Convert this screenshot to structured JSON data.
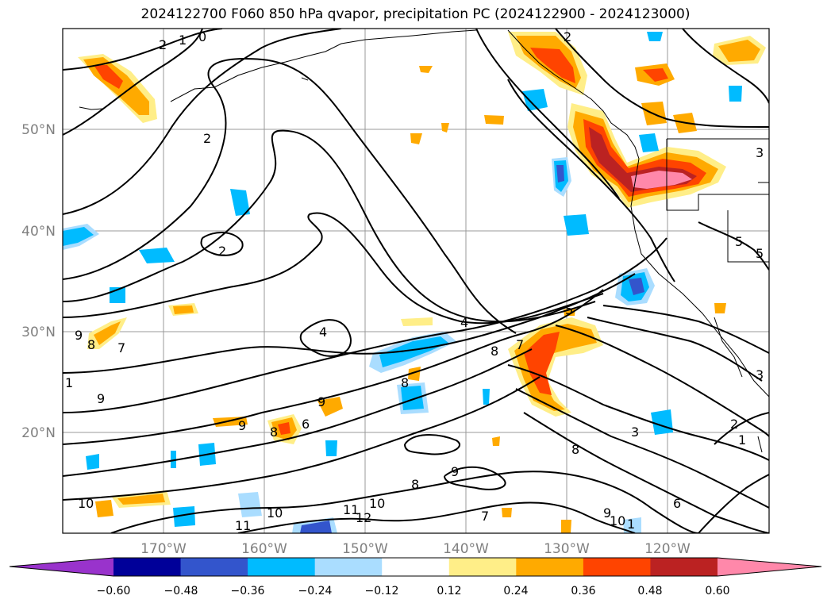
{
  "title": "2024122700 F060 850 hPa qvapor, precipitation PC (2024122900 - 2024123000)",
  "map": {
    "lon_ticks": [
      "170°W",
      "160°W",
      "150°W",
      "140°W",
      "130°W",
      "120°W"
    ],
    "lat_ticks": [
      "20°N",
      "30°N",
      "40°N",
      "50°N"
    ],
    "gridlines": true,
    "contour_labels": [
      "2",
      "1",
      "0",
      "2",
      "2",
      "2",
      "4",
      "4",
      "5",
      "8",
      "9",
      "7",
      "1",
      "9",
      "8",
      "8",
      "9",
      "8",
      "6",
      "9",
      "3",
      "8",
      "10",
      "11",
      "12",
      "10",
      "11",
      "10",
      "7",
      "9",
      "10",
      "1",
      "6",
      "7",
      "8",
      "9",
      "3",
      "2",
      "1",
      "5",
      "5",
      "3"
    ]
  },
  "colorbar": {
    "ticks": [
      "−0.60",
      "−0.48",
      "−0.36",
      "−0.24",
      "−0.12",
      "0.12",
      "0.24",
      "0.36",
      "0.48",
      "0.60"
    ],
    "colors": [
      "#9933cc",
      "#000099",
      "#3355cc",
      "#00bbff",
      "#aaddff",
      "#ffffff",
      "#ffee88",
      "#ffaa00",
      "#ff4400",
      "#bb2222",
      "#ff88aa"
    ]
  }
}
